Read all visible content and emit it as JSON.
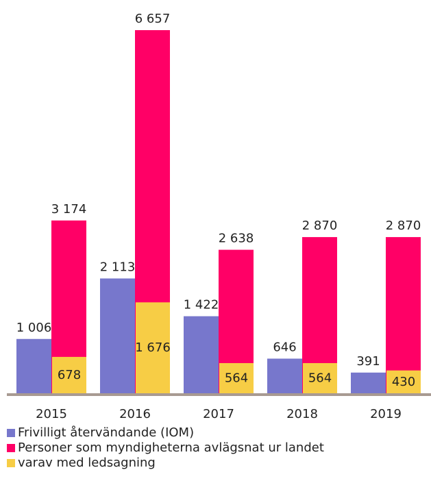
{
  "chart_data": {
    "type": "bar",
    "categories": [
      "2015",
      "2016",
      "2017",
      "2018",
      "2019"
    ],
    "series": [
      {
        "name": "Frivilligt återvändande (IOM)",
        "color": "#7777cc",
        "values": [
          1006,
          2113,
          1422,
          646,
          391
        ],
        "value_labels": [
          "1 006",
          "2 113",
          "1 422",
          "646",
          "391"
        ]
      },
      {
        "name": "Personer som myndigheterna avlägsnat ur landet",
        "color": "#ff0066",
        "values": [
          3174,
          6657,
          2638,
          2870,
          2870
        ],
        "value_labels": [
          "3 174",
          "6 657",
          "2 638",
          "2 870",
          "2 870"
        ]
      },
      {
        "name": "varav med ledsagning",
        "color": "#f7cd45",
        "values": [
          678,
          1676,
          564,
          564,
          430
        ],
        "value_labels": [
          "678",
          "1 676",
          "564",
          "564",
          "430"
        ]
      }
    ]
  }
}
